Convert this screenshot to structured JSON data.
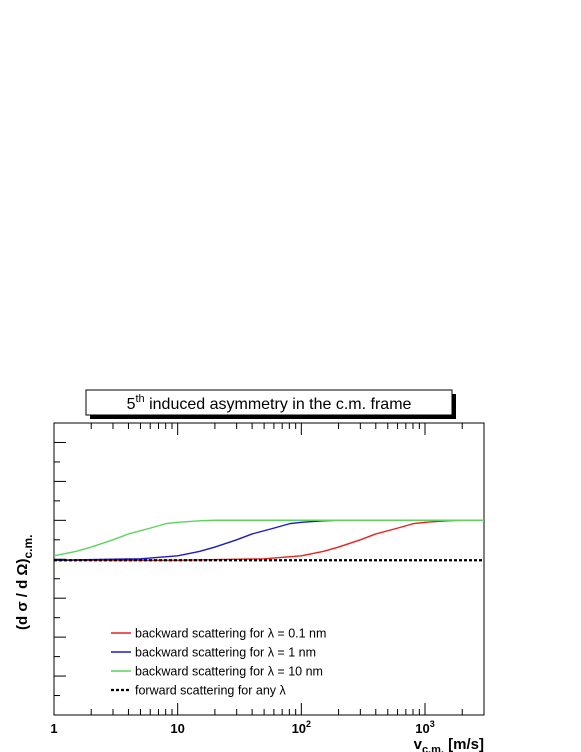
{
  "chart_data": {
    "type": "line",
    "title": "5th induced asymmetry in the c.m. frame",
    "title_parts": {
      "base": "5",
      "sup": "th",
      "rest": " induced asymmetry in the c.m. frame"
    },
    "xlabel": "v_c.m. [m/s]",
    "xlabel_parts": {
      "base": "v",
      "sub": "c.m.",
      "rest": " [m/s]"
    },
    "ylabel": "(d σ / d Ω)_c.m.",
    "ylabel_parts": {
      "base": "(d σ / d Ω)",
      "sub": "c.m."
    },
    "x_scale": "log",
    "xlim": [
      1,
      3000
    ],
    "ylim": [
      0,
      1
    ],
    "y_tick_labels_shown": false,
    "x_tick_labels": [
      {
        "value": 1,
        "base": "1",
        "exp": ""
      },
      {
        "value": 10,
        "base": "10",
        "exp": ""
      },
      {
        "value": 100,
        "base": "10",
        "exp": "2"
      },
      {
        "value": 1000,
        "base": "10",
        "exp": "3"
      }
    ],
    "grid": false,
    "legend_position": "bottom-left",
    "series": [
      {
        "name": "backward scattering for λ =  0.1 nm",
        "color": "#e8201e",
        "style": "solid",
        "x": [
          1,
          10,
          50,
          100,
          150,
          200,
          300,
          400,
          600,
          800,
          1000,
          1500,
          2000,
          3000
        ],
        "y": [
          0.53,
          0.53,
          0.535,
          0.545,
          0.56,
          0.575,
          0.6,
          0.62,
          0.64,
          0.655,
          0.66,
          0.665,
          0.667,
          0.667
        ]
      },
      {
        "name": "backward scattering for λ =   1 nm",
        "color": "#1a1ac8",
        "style": "solid",
        "x": [
          1,
          5,
          10,
          15,
          20,
          30,
          40,
          60,
          80,
          100,
          150,
          200,
          300,
          3000
        ],
        "y": [
          0.53,
          0.535,
          0.545,
          0.56,
          0.575,
          0.6,
          0.62,
          0.64,
          0.655,
          0.66,
          0.665,
          0.667,
          0.667,
          0.667
        ]
      },
      {
        "name": "backward scattering for λ =   10 nm",
        "color": "#5cd45c",
        "style": "solid",
        "x": [
          1,
          1.5,
          2,
          3,
          4,
          6,
          8,
          10,
          15,
          20,
          30,
          3000
        ],
        "y": [
          0.545,
          0.56,
          0.575,
          0.6,
          0.62,
          0.64,
          0.655,
          0.66,
          0.665,
          0.667,
          0.667,
          0.667
        ]
      },
      {
        "name": "forward scattering for any λ",
        "color": "#000000",
        "style": "dotted",
        "x": [
          1,
          3000
        ],
        "y": [
          0.53,
          0.53
        ]
      }
    ]
  }
}
